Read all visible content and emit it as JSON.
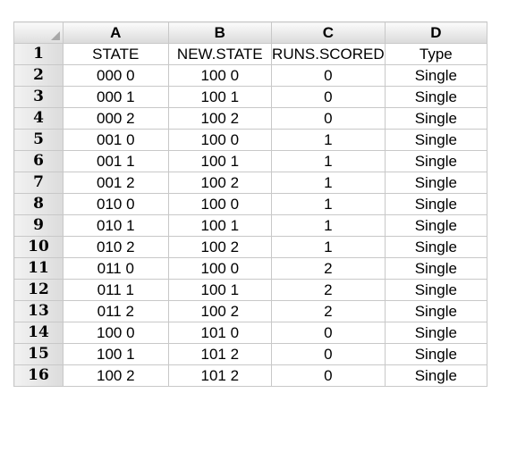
{
  "spreadsheet": {
    "column_headers": [
      "A",
      "B",
      "C",
      "D"
    ],
    "rows": [
      {
        "num": "1",
        "cells": [
          "STATE",
          "NEW.STATE",
          "RUNS.SCORED",
          "Type"
        ]
      },
      {
        "num": "2",
        "cells": [
          "000 0",
          "100 0",
          "0",
          "Single"
        ]
      },
      {
        "num": "3",
        "cells": [
          "000 1",
          "100 1",
          "0",
          "Single"
        ]
      },
      {
        "num": "4",
        "cells": [
          "000 2",
          "100 2",
          "0",
          "Single"
        ]
      },
      {
        "num": "5",
        "cells": [
          "001 0",
          "100 0",
          "1",
          "Single"
        ]
      },
      {
        "num": "6",
        "cells": [
          "001 1",
          "100 1",
          "1",
          "Single"
        ]
      },
      {
        "num": "7",
        "cells": [
          "001 2",
          "100 2",
          "1",
          "Single"
        ]
      },
      {
        "num": "8",
        "cells": [
          "010 0",
          "100 0",
          "1",
          "Single"
        ]
      },
      {
        "num": "9",
        "cells": [
          "010 1",
          "100 1",
          "1",
          "Single"
        ]
      },
      {
        "num": "10",
        "cells": [
          "010 2",
          "100 2",
          "1",
          "Single"
        ]
      },
      {
        "num": "11",
        "cells": [
          "011 0",
          "100 0",
          "2",
          "Single"
        ]
      },
      {
        "num": "12",
        "cells": [
          "011 1",
          "100 1",
          "2",
          "Single"
        ]
      },
      {
        "num": "13",
        "cells": [
          "011 2",
          "100 2",
          "2",
          "Single"
        ]
      },
      {
        "num": "14",
        "cells": [
          "100 0",
          "101 0",
          "0",
          "Single"
        ]
      },
      {
        "num": "15",
        "cells": [
          "100 1",
          "101 2",
          "0",
          "Single"
        ]
      },
      {
        "num": "16",
        "cells": [
          "100 2",
          "101 2",
          "0",
          "Single"
        ]
      }
    ]
  }
}
